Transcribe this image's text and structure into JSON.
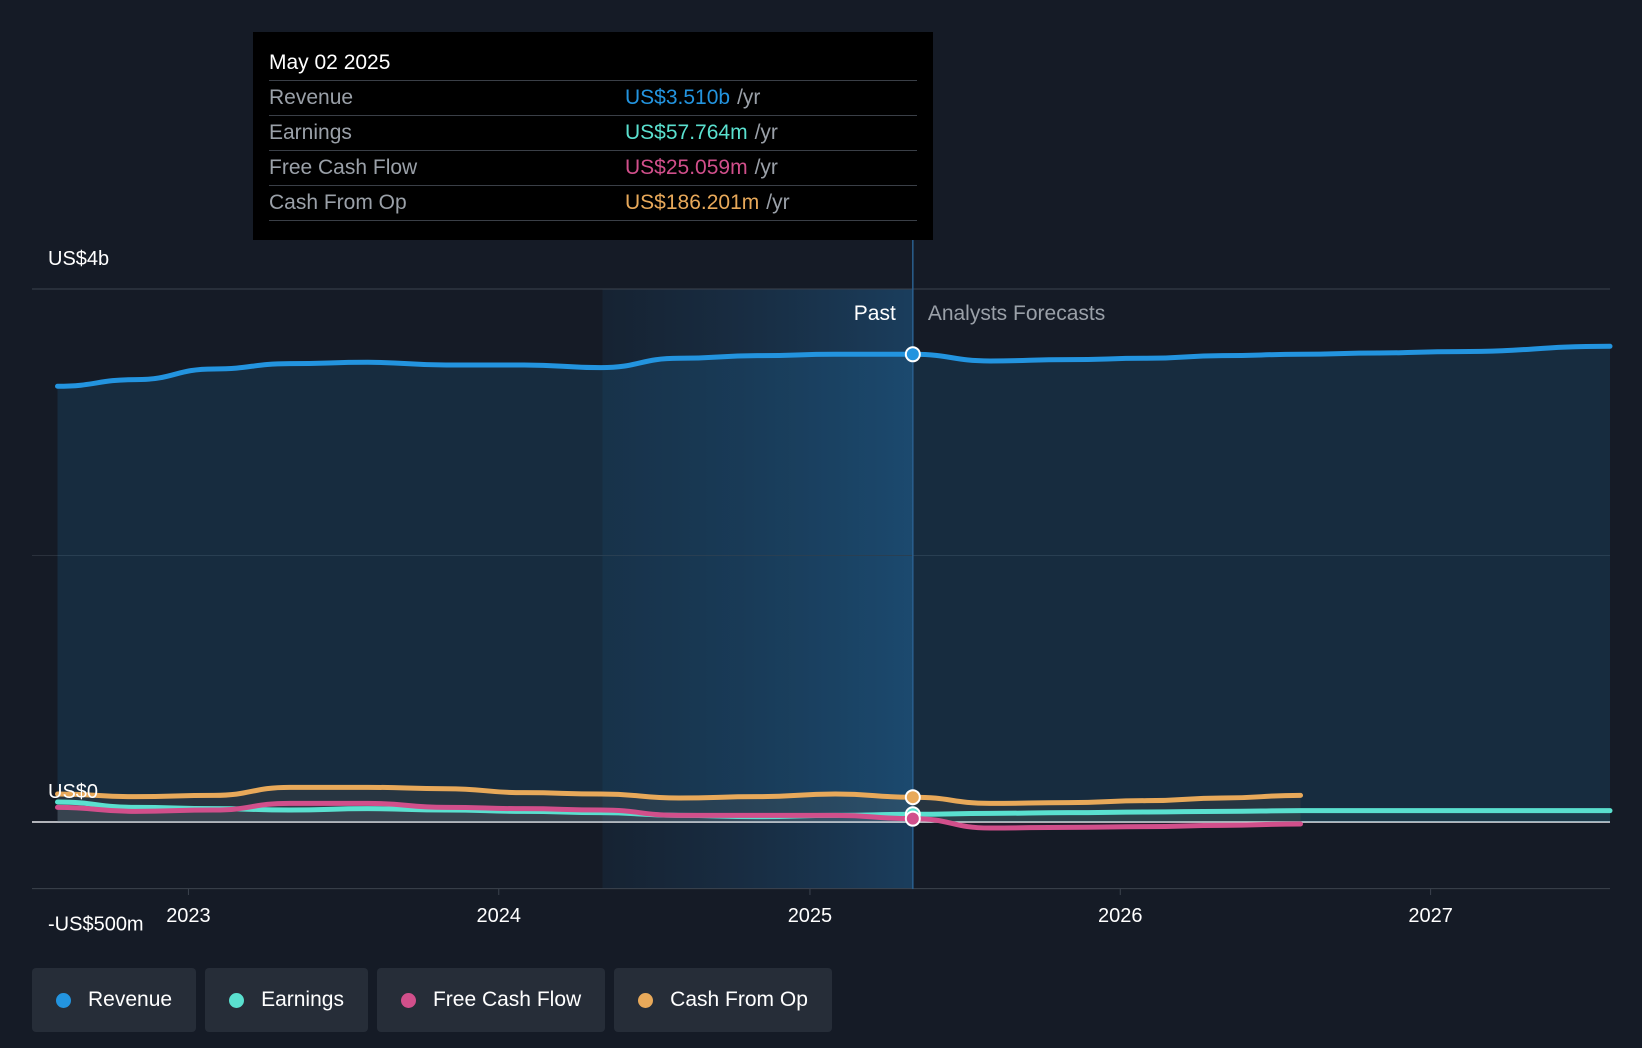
{
  "chart_data": {
    "type": "area",
    "x_unit": "date",
    "y_unit": "USD",
    "y_tick_labels": [
      "US$4b",
      "US$0",
      "-US$500m"
    ],
    "y_tick_values": [
      4000,
      0,
      -500
    ],
    "ylim": [
      -500,
      4000
    ],
    "xlim": [
      "2022-07-01",
      "2027-07-31"
    ],
    "x_ticks": [
      "2023",
      "2024",
      "2025",
      "2026",
      "2027"
    ],
    "x_tick_values": [
      "2023-01-01",
      "2024-01-01",
      "2025-01-01",
      "2026-01-01",
      "2027-01-01"
    ],
    "grid": true,
    "past_label": "Past",
    "forecast_label": "Analysts Forecasts",
    "divider_date": "2025-05-02",
    "highlight_start": "2024-05-02",
    "series": [
      {
        "name": "Revenue",
        "color": "#2394df",
        "filled": true,
        "points": [
          [
            "2022-07-31",
            3270
          ],
          [
            "2022-10-31",
            3320
          ],
          [
            "2023-01-31",
            3400
          ],
          [
            "2023-04-30",
            3440
          ],
          [
            "2023-07-31",
            3450
          ],
          [
            "2023-10-31",
            3430
          ],
          [
            "2024-01-31",
            3430
          ],
          [
            "2024-04-30",
            3410
          ],
          [
            "2024-07-31",
            3480
          ],
          [
            "2024-10-31",
            3500
          ],
          [
            "2025-01-31",
            3510
          ],
          [
            "2025-05-02",
            3510
          ],
          [
            "2025-08-01",
            3460
          ],
          [
            "2025-11-01",
            3470
          ],
          [
            "2026-02-01",
            3480
          ],
          [
            "2026-05-01",
            3500
          ],
          [
            "2026-08-01",
            3510
          ],
          [
            "2026-11-01",
            3520
          ],
          [
            "2027-02-01",
            3530
          ],
          [
            "2027-07-31",
            3570
          ]
        ]
      },
      {
        "name": "Earnings",
        "color": "#5ae0cf",
        "filled": false,
        "points": [
          [
            "2022-07-31",
            150
          ],
          [
            "2022-10-31",
            110
          ],
          [
            "2023-01-31",
            100
          ],
          [
            "2023-04-30",
            90
          ],
          [
            "2023-07-31",
            100
          ],
          [
            "2023-10-31",
            90
          ],
          [
            "2024-01-31",
            80
          ],
          [
            "2024-04-30",
            70
          ],
          [
            "2024-07-31",
            50
          ],
          [
            "2024-10-31",
            40
          ],
          [
            "2025-01-31",
            50
          ],
          [
            "2025-05-02",
            57.764
          ],
          [
            "2025-08-01",
            65
          ],
          [
            "2025-11-01",
            70
          ],
          [
            "2026-02-01",
            75
          ],
          [
            "2026-05-01",
            80
          ],
          [
            "2026-08-01",
            85
          ],
          [
            "2026-11-01",
            85
          ],
          [
            "2027-02-01",
            85
          ],
          [
            "2027-07-31",
            85
          ]
        ]
      },
      {
        "name": "Free Cash Flow",
        "color": "#d14f8b",
        "filled": false,
        "points": [
          [
            "2022-07-31",
            110
          ],
          [
            "2022-10-31",
            80
          ],
          [
            "2023-01-31",
            90
          ],
          [
            "2023-04-30",
            140
          ],
          [
            "2023-07-31",
            140
          ],
          [
            "2023-10-31",
            110
          ],
          [
            "2024-01-31",
            100
          ],
          [
            "2024-04-30",
            90
          ],
          [
            "2024-07-31",
            50
          ],
          [
            "2024-10-31",
            50
          ],
          [
            "2025-01-31",
            50
          ],
          [
            "2025-05-02",
            25.059
          ],
          [
            "2025-08-01",
            -45
          ],
          [
            "2025-11-01",
            -40
          ],
          [
            "2026-02-01",
            -35
          ],
          [
            "2026-05-01",
            -25
          ],
          [
            "2026-08-01",
            -15
          ]
        ]
      },
      {
        "name": "Cash From Op",
        "color": "#e8a95a",
        "filled": false,
        "points": [
          [
            "2022-07-31",
            210
          ],
          [
            "2022-10-31",
            190
          ],
          [
            "2023-01-31",
            200
          ],
          [
            "2023-04-30",
            260
          ],
          [
            "2023-07-31",
            260
          ],
          [
            "2023-10-31",
            250
          ],
          [
            "2024-01-31",
            220
          ],
          [
            "2024-04-30",
            210
          ],
          [
            "2024-07-31",
            180
          ],
          [
            "2024-10-31",
            190
          ],
          [
            "2025-01-31",
            210
          ],
          [
            "2025-05-02",
            186.201
          ],
          [
            "2025-08-01",
            140
          ],
          [
            "2025-11-01",
            145
          ],
          [
            "2026-02-01",
            160
          ],
          [
            "2026-05-01",
            180
          ],
          [
            "2026-08-01",
            200
          ]
        ]
      }
    ]
  },
  "tooltip": {
    "date": "May 02 2025",
    "unit": "/yr",
    "rows": [
      {
        "label": "Revenue",
        "value": "US$3.510b",
        "color": "#2394df"
      },
      {
        "label": "Earnings",
        "value": "US$57.764m",
        "color": "#5ae0cf"
      },
      {
        "label": "Free Cash Flow",
        "value": "US$25.059m",
        "color": "#d14f8b"
      },
      {
        "label": "Cash From Op",
        "value": "US$186.201m",
        "color": "#e8a95a"
      }
    ]
  },
  "legend": [
    {
      "label": "Revenue",
      "color": "#2394df"
    },
    {
      "label": "Earnings",
      "color": "#5ae0cf"
    },
    {
      "label": "Free Cash Flow",
      "color": "#d14f8b"
    },
    {
      "label": "Cash From Op",
      "color": "#e8a95a"
    }
  ]
}
